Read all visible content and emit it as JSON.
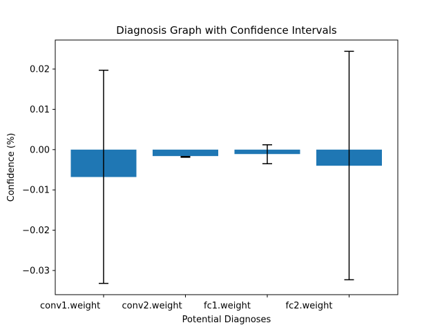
{
  "chart_data": {
    "type": "bar",
    "title": "Diagnosis Graph with Confidence Intervals",
    "xlabel": "Potential Diagnoses",
    "ylabel": "Confidence (%)",
    "categories": [
      "conv1.weight",
      "conv2.weight",
      "fc1.weight",
      "fc2.weight"
    ],
    "values": [
      -0.0068,
      -0.0016,
      -0.0011,
      -0.004
    ],
    "error_bars": {
      "lower": [
        -0.0332,
        -0.0019,
        -0.0035,
        -0.0323
      ],
      "upper": [
        0.0197,
        -0.0017,
        0.0012,
        0.0244
      ]
    },
    "ylim": [
      -0.036,
      0.0272
    ],
    "yticks": [
      -0.03,
      -0.02,
      -0.01,
      0.0,
      0.01,
      0.02
    ],
    "ytick_labels": [
      "−0.03",
      "−0.02",
      "−0.01",
      "0.00",
      "0.01",
      "0.02"
    ],
    "grid": false,
    "bar_color": "#1f77b4",
    "errorbar_color": "#000000"
  }
}
